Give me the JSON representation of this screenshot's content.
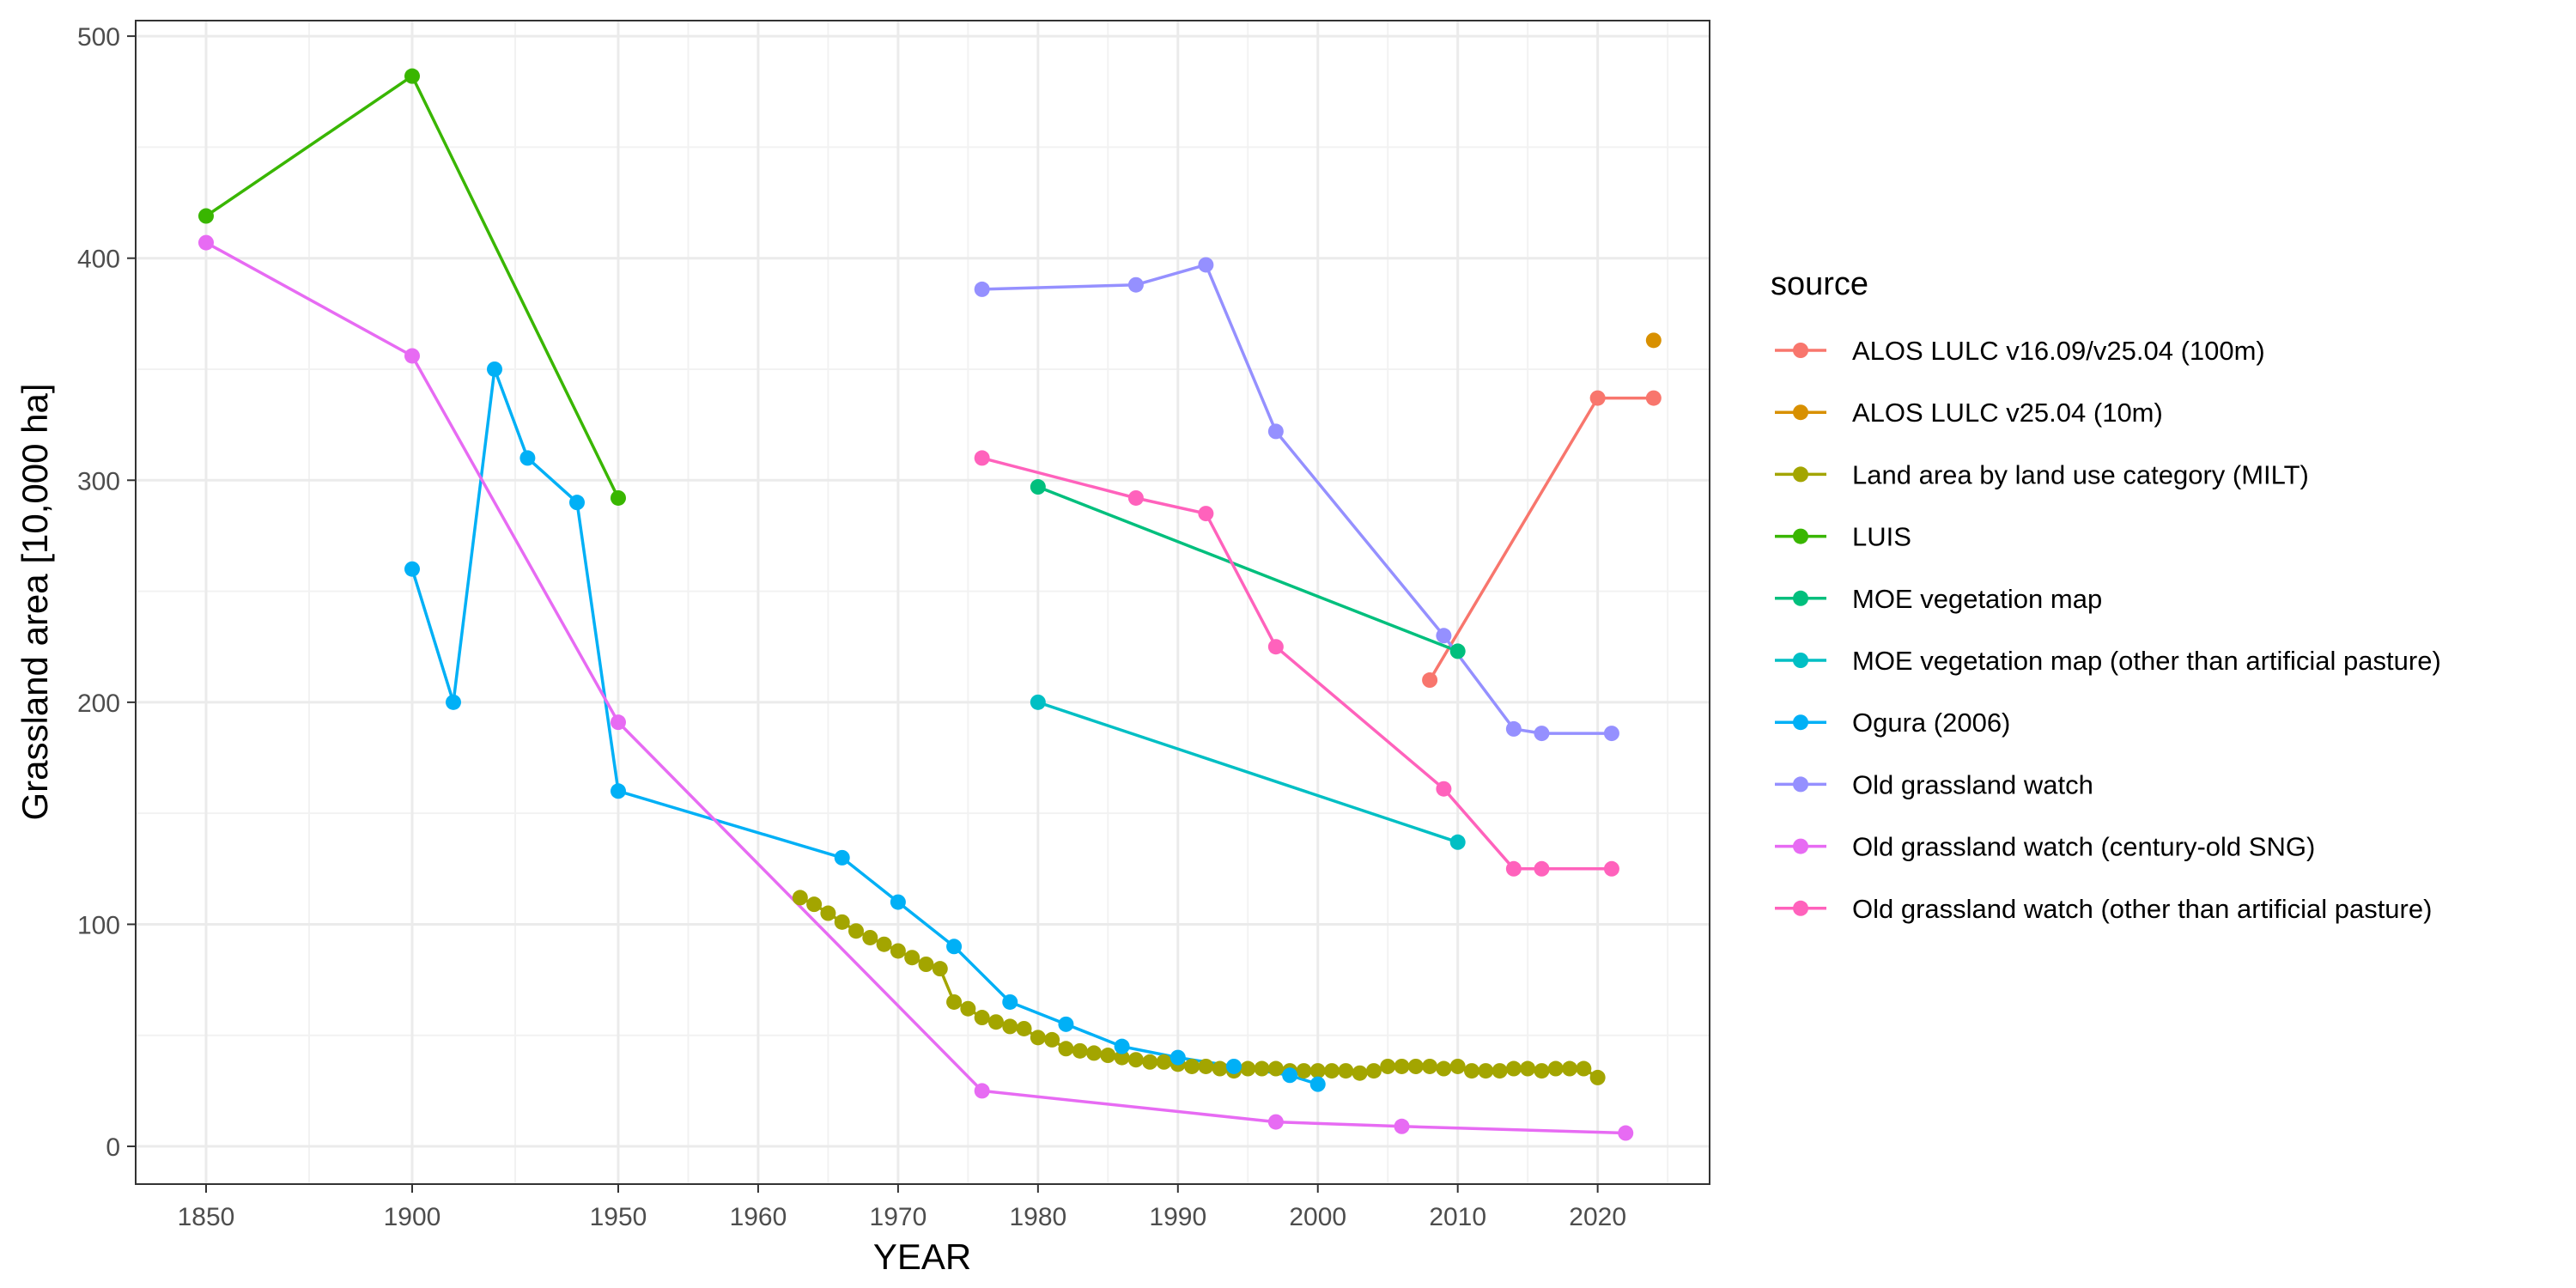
{
  "chart_data": {
    "type": "line",
    "xlabel": "YEAR",
    "ylabel": "Grassland area [10,000 ha]",
    "xlim": [
      1841,
      2028
    ],
    "ylim": [
      -17,
      507
    ],
    "x_breaks": [
      1850,
      1900,
      1950,
      1960,
      1970,
      1980,
      1990,
      2000,
      2010,
      2020
    ],
    "x_labels": [
      "1850",
      "1900",
      "1950",
      "1960",
      "1970",
      "1980",
      "1990",
      "2000",
      "2010",
      "2020"
    ],
    "y_breaks": [
      0,
      100,
      200,
      300,
      400,
      500
    ],
    "y_labels": [
      "0",
      "100",
      "200",
      "300",
      "400",
      "500"
    ],
    "grid": true,
    "legend_title": "source",
    "legend_position": "right",
    "series": [
      {
        "name": "ALOS LULC v16.09/v25.04 (100m)",
        "color": "#F8766D",
        "x": [
          2008,
          2020,
          2024
        ],
        "y": [
          210,
          337,
          337
        ]
      },
      {
        "name": "ALOS LULC v25.04 (10m)",
        "color": "#D89000",
        "x": [
          2024
        ],
        "y": [
          363
        ]
      },
      {
        "name": "Land area by land use category (MILT)",
        "color": "#A3A500",
        "x": [
          1963,
          1964,
          1965,
          1966,
          1967,
          1968,
          1969,
          1970,
          1971,
          1972,
          1973,
          1974,
          1975,
          1976,
          1977,
          1978,
          1979,
          1980,
          1981,
          1982,
          1983,
          1984,
          1985,
          1986,
          1987,
          1988,
          1989,
          1990,
          1991,
          1992,
          1993,
          1994,
          1995,
          1996,
          1997,
          1998,
          1999,
          2000,
          2001,
          2002,
          2003,
          2004,
          2005,
          2006,
          2007,
          2008,
          2009,
          2010,
          2011,
          2012,
          2013,
          2014,
          2015,
          2016,
          2017,
          2018,
          2019,
          2020
        ],
        "y": [
          112,
          109,
          105,
          101,
          97,
          94,
          91,
          88,
          85,
          82,
          80,
          65,
          62,
          58,
          56,
          54,
          53,
          49,
          48,
          44,
          43,
          42,
          41,
          40,
          39,
          38,
          38,
          37,
          36,
          36,
          35,
          34,
          35,
          35,
          35,
          34,
          34,
          34,
          34,
          34,
          33,
          34,
          36,
          36,
          36,
          36,
          35,
          36,
          34,
          34,
          34,
          35,
          35,
          34,
          35,
          35,
          35,
          31
        ]
      },
      {
        "name": "LUIS",
        "color": "#39B600",
        "x": [
          1850,
          1900,
          1950
        ],
        "y": [
          419,
          482,
          292
        ]
      },
      {
        "name": "MOE vegetation map",
        "color": "#00BF7D",
        "x": [
          1980,
          2010
        ],
        "y": [
          297,
          223
        ]
      },
      {
        "name": "MOE vegetation map (other than artificial pasture)",
        "color": "#00BFC4",
        "x": [
          1980,
          2010
        ],
        "y": [
          200,
          137
        ]
      },
      {
        "name": "Ogura (2006)",
        "color": "#00B0F6",
        "x": [
          1900,
          1910,
          1920,
          1928,
          1940,
          1950,
          1966,
          1970,
          1974,
          1978,
          1982,
          1986,
          1990,
          1994,
          1998,
          2000
        ],
        "y": [
          260,
          200,
          350,
          310,
          290,
          160,
          130,
          110,
          90,
          65,
          55,
          45,
          40,
          36,
          32,
          28
        ]
      },
      {
        "name": "Old grassland watch",
        "color": "#9590FF",
        "x": [
          1976,
          1987,
          1992,
          1997,
          2009,
          2014,
          2016,
          2021
        ],
        "y": [
          386,
          388,
          397,
          322,
          230,
          188,
          186,
          186
        ]
      },
      {
        "name": "Old grassland watch (century-old SNG)",
        "color": "#E76BF3",
        "x": [
          1850,
          1900,
          1950,
          1976,
          1997,
          2006,
          2022
        ],
        "y": [
          407,
          356,
          191,
          25,
          11,
          9,
          6
        ]
      },
      {
        "name": "Old grassland watch (other than artificial pasture)",
        "color": "#FF62BC",
        "x": [
          1976,
          1987,
          1992,
          1997,
          2009,
          2014,
          2016,
          2021
        ],
        "y": [
          310,
          292,
          285,
          225,
          161,
          125,
          125,
          125
        ]
      }
    ]
  }
}
